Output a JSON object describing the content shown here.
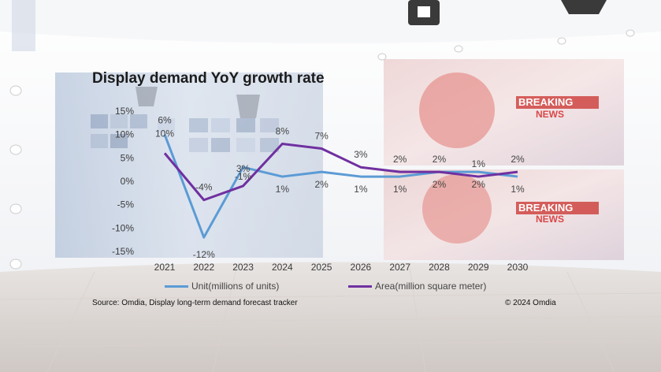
{
  "title": "Display demand YoY growth rate",
  "source": "Source: Omdia, Display long-term demand forecast tracker",
  "copyright": "© 2024 Omdia",
  "background": {
    "screen_text_top": [
      "BREAKING",
      "NEWS"
    ],
    "screen_text_bottom": [
      "BREAKING",
      "NEWS"
    ]
  },
  "chart_data": {
    "type": "line",
    "categories": [
      "2021",
      "2022",
      "2023",
      "2024",
      "2025",
      "2026",
      "2027",
      "2028",
      "2029",
      "2030"
    ],
    "ylim": [
      -15,
      15
    ],
    "yticks": [
      15,
      10,
      5,
      0,
      -5,
      -10,
      -15
    ],
    "ytick_labels": [
      "15%",
      "10%",
      "5%",
      "0%",
      "-5%",
      "-10%",
      "-15%"
    ],
    "grid": false,
    "legend": "bottom",
    "series": [
      {
        "name": "Unit(millions of units)",
        "color": "#5b9bd5",
        "values": [
          10,
          -12,
          3,
          1,
          2,
          1,
          1,
          2,
          2,
          1
        ],
        "labels": [
          "10%",
          "-12%",
          "3%",
          "1%",
          "2%",
          "1%",
          "1%",
          "2%",
          "2%",
          "1%"
        ]
      },
      {
        "name": "Area(million square meter)",
        "color": "#7030a0",
        "values": [
          6,
          -4,
          -1,
          8,
          7,
          3,
          2,
          2,
          1,
          2
        ],
        "labels": [
          "6%",
          "-4%",
          "-1%",
          "8%",
          "7%",
          "3%",
          "2%",
          "2%",
          "1%",
          "2%"
        ]
      }
    ]
  }
}
